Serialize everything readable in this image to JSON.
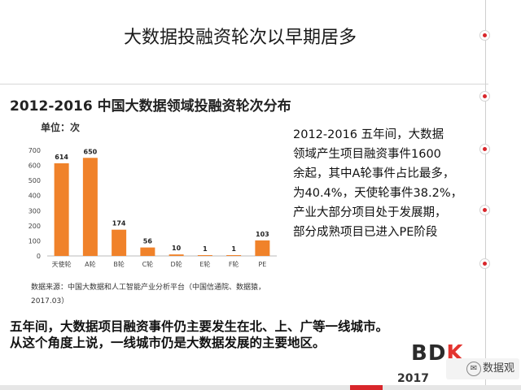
{
  "slide_title": "大数据投融资轮次以早期居多",
  "chart_data": {
    "type": "bar",
    "title": "2012-2016 中国大数据领域投融资轮次分布",
    "unit": "单位：次",
    "categories": [
      "天使轮",
      "A轮",
      "B轮",
      "C轮",
      "D轮",
      "E轮",
      "F轮",
      "PE"
    ],
    "values": [
      614,
      650,
      174,
      56,
      10,
      1,
      1,
      103
    ],
    "yticks": [
      "0",
      "100",
      "200",
      "300",
      "400",
      "500",
      "600",
      "700"
    ],
    "ylim": [
      0,
      700
    ],
    "grid": false,
    "bar_color": "#f0822a"
  },
  "description_lines": [
    "2012-2016 五年间，大数据",
    "领域产生项目融资事件1600",
    "余起，其中A轮事件占比最多，",
    "为40.4%，天使轮事件38.2%，",
    "产业大部分项目处于发展期，",
    "部分成熟项目已进入PE阶段"
  ],
  "source_lines": [
    "数据来源：中国大数据和人工智能产业分析平台（中国信通院、数据猿，",
    "2017.03）"
  ],
  "summary_lines": [
    "五年间，大数据项目融资事件仍主要发生在北、上、广等一线城市。",
    "从这个角度上说，一线城市仍是大数据发展的主要地区。"
  ],
  "logo": {
    "left": "BD",
    "right": "K",
    "year": "2017"
  },
  "watermark": "数据观",
  "colors": {
    "accent": "#d9262b",
    "bar": "#f0822a"
  }
}
